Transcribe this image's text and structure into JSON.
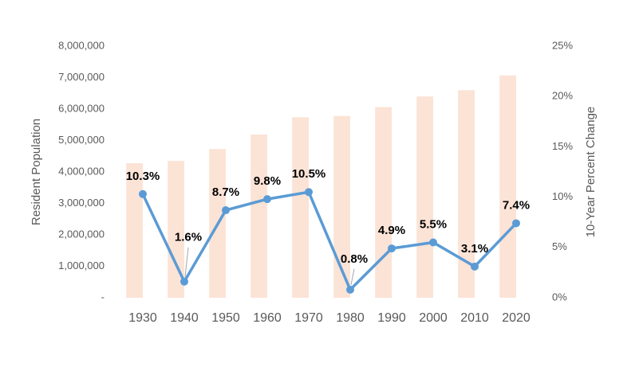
{
  "chart_data": {
    "type": "bar-line",
    "y_label": "Resident Population",
    "y2_label": "10-Year Percent Change",
    "categories": [
      "1930",
      "1940",
      "1950",
      "1960",
      "1970",
      "1980",
      "1990",
      "2000",
      "2010",
      "2020"
    ],
    "series": [
      {
        "type": "bar",
        "color": "#fbe3d6",
        "values": [
          4280000,
          4350000,
          4730000,
          5190000,
          5740000,
          5780000,
          6060000,
          6400000,
          6600000,
          7070000
        ]
      },
      {
        "type": "line",
        "axis": "y2",
        "color": "#5b9bd5",
        "values": [
          10.3,
          1.6,
          8.7,
          9.8,
          10.5,
          0.8,
          4.9,
          5.5,
          3.1,
          7.4
        ],
        "value_labels": [
          "10.3%",
          "1.6%",
          "8.7%",
          "9.8%",
          "10.5%",
          "0.8%",
          "4.9%",
          "5.5%",
          "3.1%",
          "7.4%"
        ]
      }
    ],
    "ylim": [
      0,
      8000000
    ],
    "yticks": [
      {
        "value": 0,
        "label": "-"
      },
      {
        "value": 1000000,
        "label": "1,000,000"
      },
      {
        "value": 2000000,
        "label": "2,000,000"
      },
      {
        "value": 3000000,
        "label": "3,000,000"
      },
      {
        "value": 4000000,
        "label": "4,000,000"
      },
      {
        "value": 5000000,
        "label": "5,000,000"
      },
      {
        "value": 6000000,
        "label": "6,000,000"
      },
      {
        "value": 7000000,
        "label": "7,000,000"
      },
      {
        "value": 8000000,
        "label": "8,000,000"
      }
    ],
    "y2lim": [
      0,
      25
    ],
    "y2ticks": [
      {
        "value": 0,
        "label": "0%"
      },
      {
        "value": 5,
        "label": "5%"
      },
      {
        "value": 10,
        "label": "10%"
      },
      {
        "value": 15,
        "label": "15%"
      },
      {
        "value": 20,
        "label": "20%"
      },
      {
        "value": 25,
        "label": "25%"
      }
    ]
  }
}
